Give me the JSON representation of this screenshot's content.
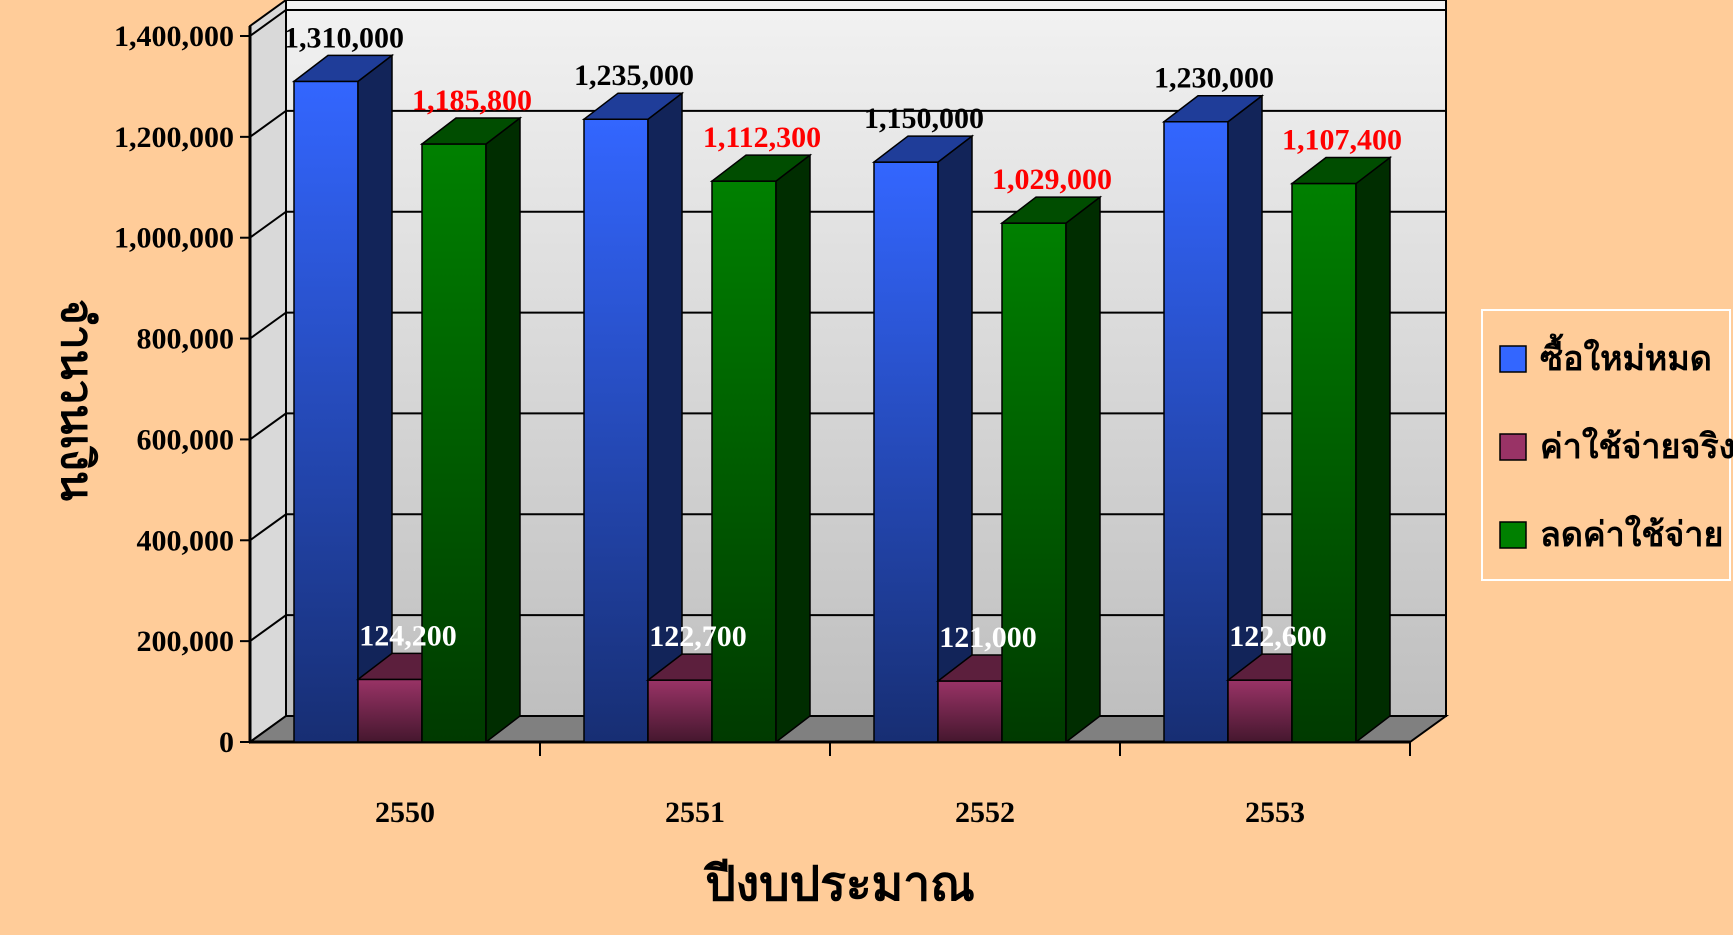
{
  "chart_data": {
    "type": "bar",
    "categories": [
      "2550",
      "2551",
      "2552",
      "2553"
    ],
    "series": [
      {
        "name": "ซื้อใหม่หมด",
        "values": [
          1310000,
          1235000,
          1150000,
          1230000
        ],
        "color": "#3366ff",
        "label_color": "#000000"
      },
      {
        "name": "ค่าใช้จ่ายจริง",
        "values": [
          124200,
          122700,
          121000,
          122600
        ],
        "color": "#993366",
        "label_color": "#ffffff"
      },
      {
        "name": "ลดค่าใช้จ่าย",
        "values": [
          1185800,
          1112300,
          1029000,
          1107400
        ],
        "color": "#008000",
        "label_color": "#ff0000"
      }
    ],
    "data_labels": [
      [
        "1,310,000",
        "1,235,000",
        "1,150,000",
        "1,230,000"
      ],
      [
        "124,200",
        "122,700",
        "121,000",
        "122,600"
      ],
      [
        "1,185,800",
        "1,112,300",
        "1,029,000",
        "1,107,400"
      ]
    ],
    "xlabel": "ปีงบประมาณ",
    "ylabel": "จำนวนเงิน",
    "ylim": [
      0,
      1400000
    ],
    "yticks": [
      "0",
      "200,000",
      "400,000",
      "600,000",
      "800,000",
      "1,000,000",
      "1,200,000",
      "1,400,000"
    ],
    "legend_position": "right",
    "grid": true,
    "style": "3d-clustered-column"
  }
}
